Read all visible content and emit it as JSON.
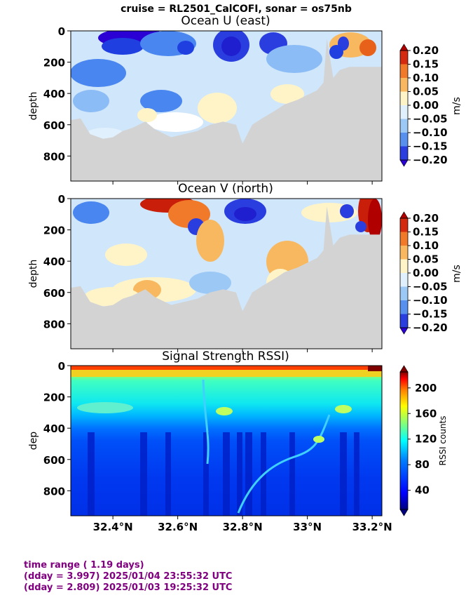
{
  "suptitle": "cruise = RL2501_CalCOFI,  sonar = os75nb",
  "chart_data": [
    {
      "type": "heatmap",
      "title": "Ocean U (east)",
      "ylabel": "depth",
      "yticks": [
        0,
        200,
        400,
        600,
        800
      ],
      "ylim": [
        960,
        0
      ],
      "xlim": [
        32.27,
        33.23
      ],
      "colorbar": {
        "label": "m/s",
        "ticks": [
          "0.20",
          "0.15",
          "0.10",
          "0.05",
          "0.00",
          "−0.05",
          "−0.10",
          "−0.15",
          "−0.20"
        ],
        "range": [
          -0.2,
          0.2
        ],
        "colormap": [
          "#2a00d4",
          "#1f3fe0",
          "#4a86f0",
          "#8cbcf5",
          "#cfe6fb",
          "#ffffff",
          "#fff2bf",
          "#ffd680",
          "#f5a43c",
          "#e8611a",
          "#c81e0a"
        ]
      },
      "bottom_depth": [
        [
          32.27,
          570
        ],
        [
          32.3,
          560
        ],
        [
          32.33,
          660
        ],
        [
          32.37,
          690
        ],
        [
          32.4,
          680
        ],
        [
          32.43,
          640
        ],
        [
          32.46,
          620
        ],
        [
          32.5,
          580
        ],
        [
          32.53,
          630
        ],
        [
          32.58,
          680
        ],
        [
          32.62,
          660
        ],
        [
          32.66,
          640
        ],
        [
          32.7,
          600
        ],
        [
          32.74,
          580
        ],
        [
          32.78,
          600
        ],
        [
          32.8,
          720
        ],
        [
          32.83,
          600
        ],
        [
          32.86,
          560
        ],
        [
          32.9,
          510
        ],
        [
          32.93,
          470
        ],
        [
          32.97,
          440
        ],
        [
          33.0,
          410
        ],
        [
          33.03,
          380
        ],
        [
          33.05,
          330
        ],
        [
          33.06,
          50
        ],
        [
          33.08,
          300
        ],
        [
          33.1,
          250
        ],
        [
          33.13,
          230
        ],
        [
          33.23,
          230
        ]
      ]
    },
    {
      "type": "heatmap",
      "title": "Ocean V (north)",
      "ylabel": "depth",
      "yticks": [
        0,
        200,
        400,
        600,
        800
      ],
      "ylim": [
        960,
        0
      ],
      "xlim": [
        32.27,
        33.23
      ],
      "colorbar": {
        "label": "m/s",
        "ticks": [
          "0.20",
          "0.15",
          "0.10",
          "0.05",
          "0.00",
          "−0.05",
          "−0.10",
          "−0.15",
          "−0.20"
        ],
        "range": [
          -0.2,
          0.2
        ],
        "colormap": [
          "#2a00d4",
          "#1f3fe0",
          "#4a86f0",
          "#8cbcf5",
          "#cfe6fb",
          "#ffffff",
          "#fff2bf",
          "#ffd680",
          "#f5a43c",
          "#e8611a",
          "#c81e0a"
        ]
      }
    },
    {
      "type": "heatmap",
      "title": "Signal Strength RSSI)",
      "ylabel": "dep",
      "yticks": [
        0,
        200,
        400,
        600,
        800
      ],
      "ylim": [
        960,
        0
      ],
      "xlim": [
        32.27,
        33.23
      ],
      "xticks": [
        "32.4°N",
        "32.6°N",
        "32.8°N",
        "33°N",
        "33.2°N"
      ],
      "xtick_values": [
        32.4,
        32.6,
        32.8,
        33.0,
        33.2
      ],
      "colorbar": {
        "label": "RSSI counts",
        "ticks": [
          "200",
          "160",
          "120",
          "80",
          "40"
        ],
        "tick_values": [
          200,
          160,
          120,
          80,
          40
        ],
        "range": [
          10,
          225
        ],
        "colormap": [
          "#00007f",
          "#0000ff",
          "#007fff",
          "#00ffff",
          "#7fff7f",
          "#ffff00",
          "#ff7f00",
          "#ff0000",
          "#7f0000"
        ]
      }
    }
  ],
  "footer": {
    "line1": "time range ( 1.19 days)",
    "line2": "(dday = 3.997) 2025/01/04 23:55:32 UTC",
    "line3": "(dday = 2.809) 2025/01/03 19:25:32 UTC"
  },
  "colors": {
    "footer": "#800080",
    "land": "#d3d3d3"
  }
}
